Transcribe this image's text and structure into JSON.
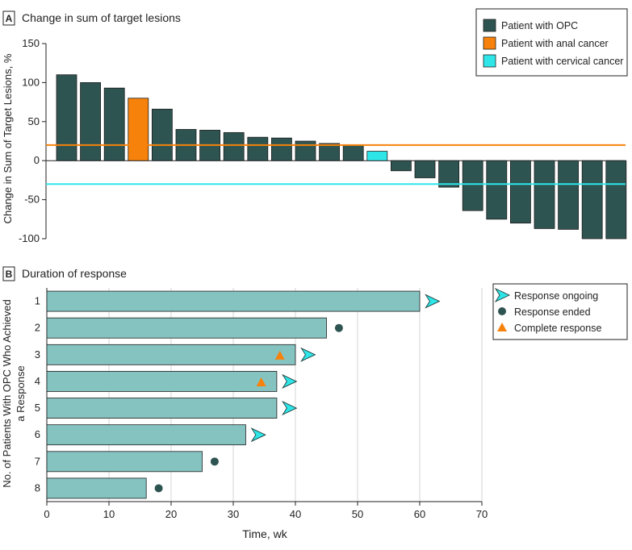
{
  "colors": {
    "opc": "#2e5452",
    "anal": "#f7820b",
    "cervical": "#2ee6e8",
    "dor_bar": "#85c3c1",
    "ongoing": "#2ee6e8",
    "ended": "#2e5452",
    "complete": "#f7820b",
    "threshold_up": "#f7820b",
    "threshold_down": "#2ee6e8"
  },
  "chart_data": [
    {
      "type": "bar",
      "panel_letter": "A",
      "title": "Change in sum of target lesions",
      "ylabel": "Change in Sum of Target Lesions, %",
      "xlabel": "",
      "ylim": [
        -100,
        150
      ],
      "yticks": [
        150,
        100,
        50,
        0,
        -50,
        -100
      ],
      "grid": false,
      "legend_position": "top-right",
      "legend": [
        {
          "label": "Patient with OPC",
          "key": "opc"
        },
        {
          "label": "Patient with anal cancer",
          "key": "anal"
        },
        {
          "label": "Patient with cervical cancer",
          "key": "cervical"
        }
      ],
      "reference_lines": [
        {
          "y": 20,
          "color_key": "threshold_up"
        },
        {
          "y": -30,
          "color_key": "threshold_down"
        }
      ],
      "values": [
        110,
        100,
        93,
        80,
        66,
        40,
        39,
        36,
        30,
        29,
        25,
        22,
        20,
        12,
        -13,
        -22,
        -34,
        -64,
        -75,
        -80,
        -87,
        -88,
        -100,
        -100
      ],
      "bar_types": [
        "opc",
        "opc",
        "opc",
        "anal",
        "opc",
        "opc",
        "opc",
        "opc",
        "opc",
        "opc",
        "opc",
        "opc",
        "opc",
        "cervical",
        "opc",
        "opc",
        "opc",
        "opc",
        "opc",
        "opc",
        "opc",
        "opc",
        "opc",
        "opc"
      ]
    },
    {
      "type": "bar",
      "orientation": "horizontal",
      "panel_letter": "B",
      "title": "Duration of response",
      "ylabel": "No. of Patients With OPC Who Achieved a Response",
      "xlabel": "Time, wk",
      "xlim": [
        0,
        70
      ],
      "xticks": [
        0,
        10,
        20,
        30,
        40,
        50,
        60,
        70
      ],
      "grid": true,
      "legend_position": "top-right",
      "legend": [
        {
          "label": "Response ongoing",
          "marker": "ongoing"
        },
        {
          "label": "Response ended",
          "marker": "ended"
        },
        {
          "label": "Complete response",
          "marker": "complete"
        }
      ],
      "categories": [
        "1",
        "2",
        "3",
        "4",
        "5",
        "6",
        "7",
        "8"
      ],
      "values": [
        60,
        45,
        40,
        37,
        37,
        32,
        25,
        16
      ],
      "end_markers": [
        {
          "x": 62,
          "marker": "ongoing"
        },
        {
          "x": 47,
          "marker": "ended"
        },
        {
          "x": 42,
          "marker": "ongoing"
        },
        {
          "x": 39,
          "marker": "ongoing"
        },
        {
          "x": 39,
          "marker": "ongoing"
        },
        {
          "x": 34,
          "marker": "ongoing"
        },
        {
          "x": 27,
          "marker": "ended"
        },
        {
          "x": 18,
          "marker": "ended"
        }
      ],
      "complete_markers": [
        {
          "row": 2,
          "x": 37.5
        },
        {
          "row": 3,
          "x": 34.5
        }
      ]
    }
  ]
}
